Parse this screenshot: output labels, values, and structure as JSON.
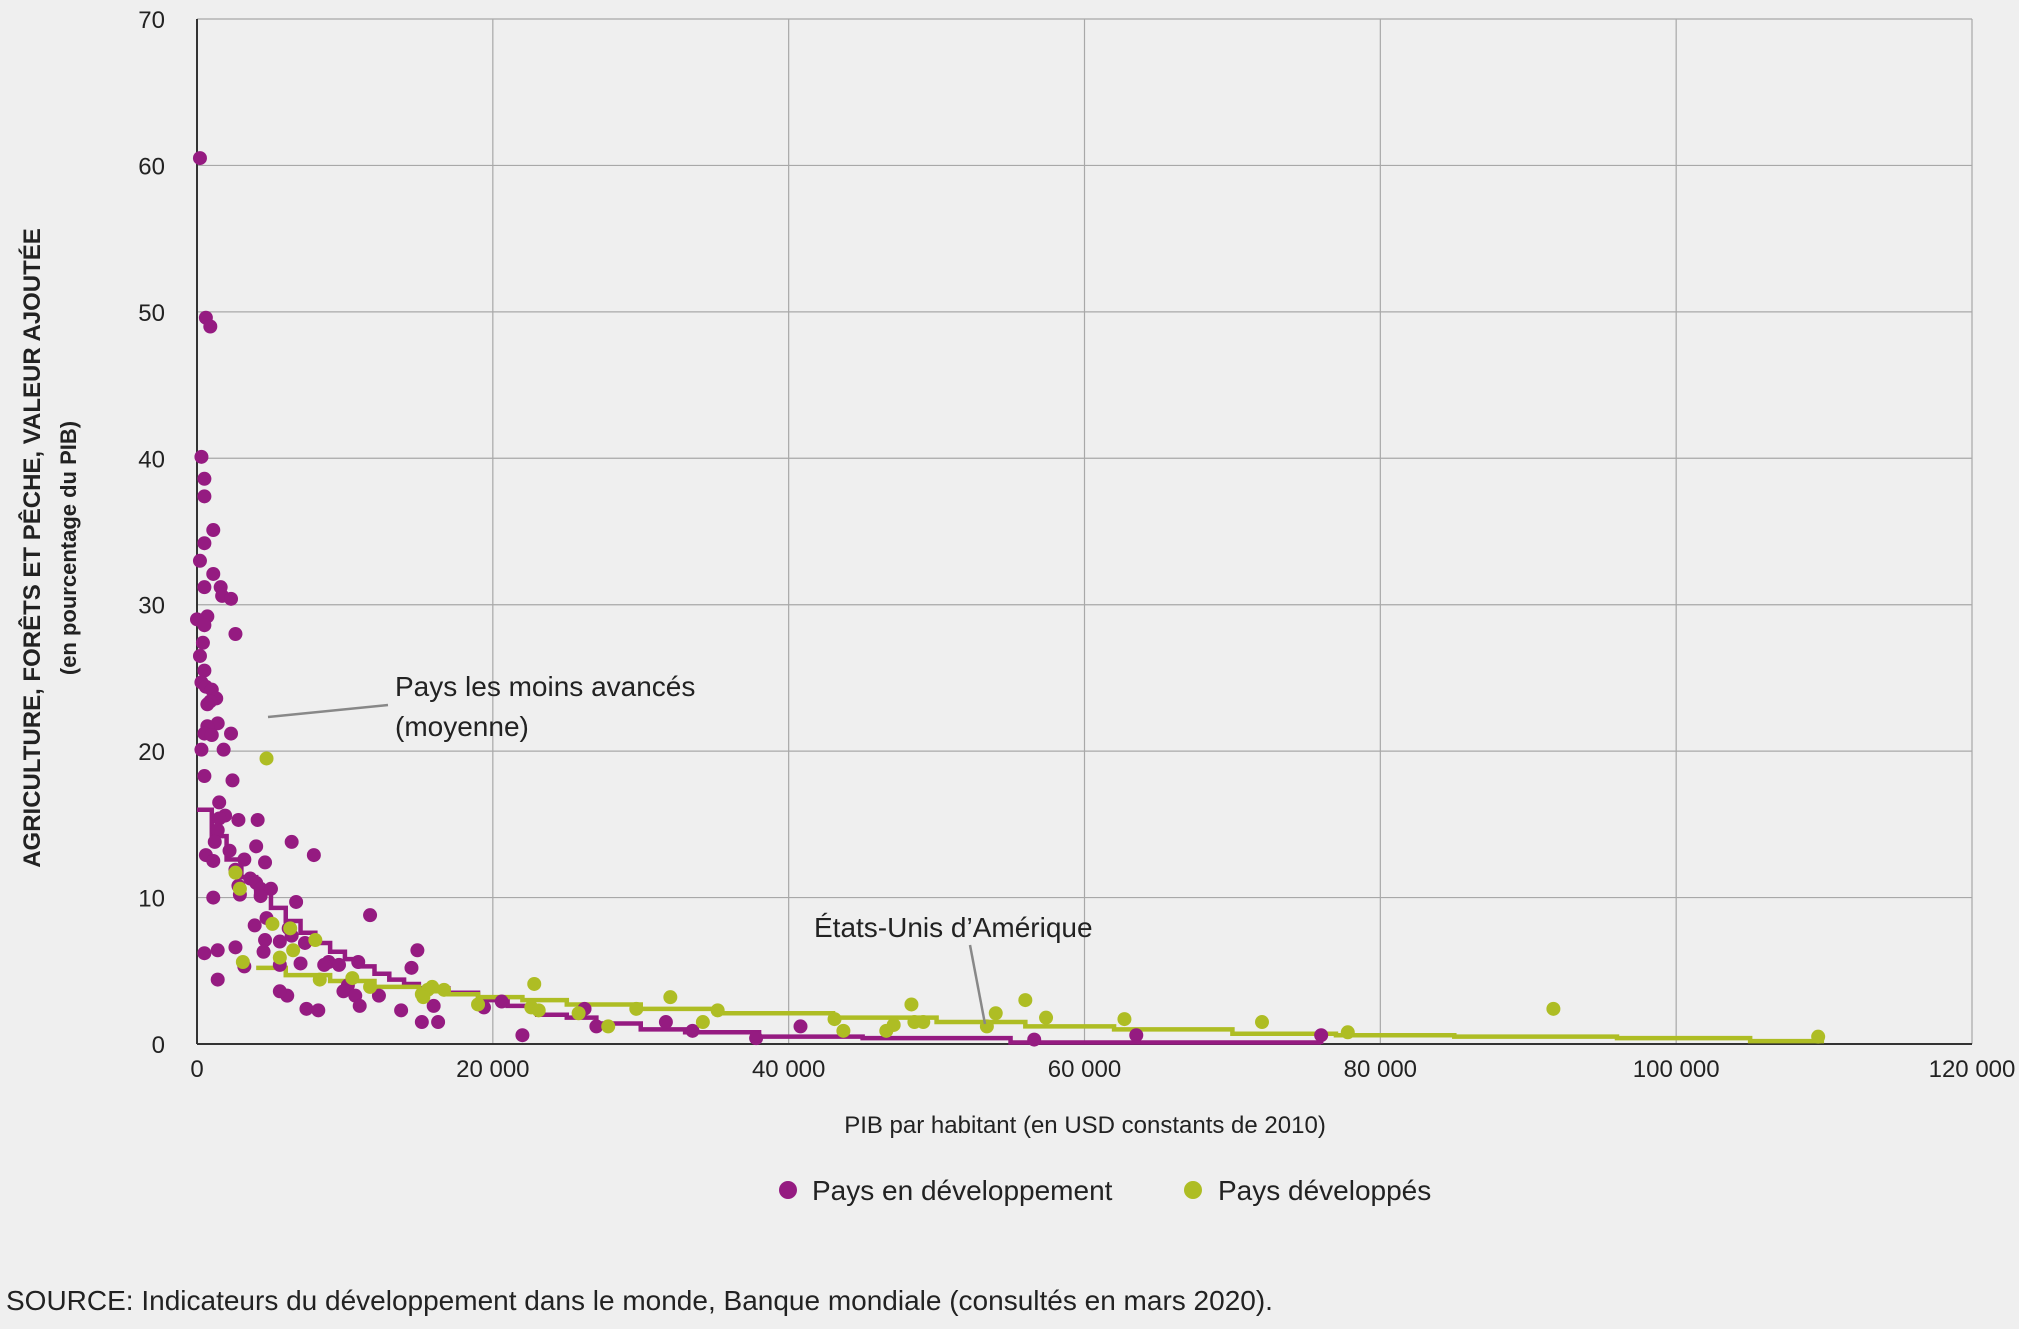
{
  "chart_data": {
    "type": "scatter",
    "xlabel": "PIB par habitant (en USD constants de 2010)",
    "ylabel": "AGRICULTURE, FORÊTS ET PÊCHE, VALEUR AJOUTÉE",
    "ylabel_sub": "(en pourcentage du PIB)",
    "xlim": [
      0,
      120000
    ],
    "ylim": [
      0,
      70
    ],
    "xticks": [
      0,
      20000,
      40000,
      60000,
      80000,
      100000,
      120000
    ],
    "xtick_labels": [
      "0",
      "20 000",
      "40 000",
      "60 000",
      "80 000",
      "100 000",
      "120 000"
    ],
    "yticks": [
      0,
      10,
      20,
      30,
      40,
      50,
      60,
      70
    ],
    "ytick_labels": [
      "0",
      "10",
      "20",
      "30",
      "40",
      "50",
      "60",
      "70"
    ],
    "grid": true,
    "legend_position": "bottom",
    "colors": {
      "developing": "#951b81",
      "developed": "#aebd24"
    },
    "series": [
      {
        "name": "Pays en développement",
        "color": "#951b81",
        "points": [
          [
            200,
            60.5
          ],
          [
            600,
            49.6
          ],
          [
            900,
            49.0
          ],
          [
            300,
            40.1
          ],
          [
            500,
            38.6
          ],
          [
            500,
            37.4
          ],
          [
            1100,
            35.1
          ],
          [
            500,
            34.2
          ],
          [
            200,
            33.0
          ],
          [
            1100,
            32.1
          ],
          [
            1600,
            31.2
          ],
          [
            500,
            31.2
          ],
          [
            1700,
            30.6
          ],
          [
            2300,
            30.4
          ],
          [
            700,
            29.2
          ],
          [
            0,
            29.0
          ],
          [
            500,
            28.6
          ],
          [
            2600,
            28.0
          ],
          [
            400,
            27.4
          ],
          [
            200,
            26.5
          ],
          [
            500,
            25.5
          ],
          [
            300,
            24.7
          ],
          [
            600,
            24.4
          ],
          [
            1000,
            24.2
          ],
          [
            1300,
            23.6
          ],
          [
            900,
            23.4
          ],
          [
            700,
            23.2
          ],
          [
            1400,
            21.9
          ],
          [
            700,
            21.7
          ],
          [
            500,
            21.2
          ],
          [
            1000,
            21.1
          ],
          [
            2300,
            21.2
          ],
          [
            300,
            20.1
          ],
          [
            1800,
            20.1
          ],
          [
            500,
            18.3
          ],
          [
            2400,
            18.0
          ],
          [
            1500,
            16.5
          ],
          [
            1900,
            15.6
          ],
          [
            1500,
            15.4
          ],
          [
            2800,
            15.3
          ],
          [
            4100,
            15.3
          ],
          [
            1400,
            14.6
          ],
          [
            1200,
            13.8
          ],
          [
            600,
            12.9
          ],
          [
            1100,
            12.5
          ],
          [
            2200,
            13.2
          ],
          [
            3200,
            12.6
          ],
          [
            4000,
            13.5
          ],
          [
            6400,
            13.8
          ],
          [
            7900,
            12.9
          ],
          [
            4600,
            12.4
          ],
          [
            2600,
            11.9
          ],
          [
            3600,
            11.3
          ],
          [
            4000,
            11.0
          ],
          [
            2800,
            10.8
          ],
          [
            4300,
            10.6
          ],
          [
            5000,
            10.6
          ],
          [
            1100,
            10.0
          ],
          [
            2900,
            10.2
          ],
          [
            4300,
            10.1
          ],
          [
            6700,
            9.7
          ],
          [
            4700,
            8.6
          ],
          [
            11700,
            8.8
          ],
          [
            3900,
            8.1
          ],
          [
            6200,
            7.9
          ],
          [
            4600,
            7.1
          ],
          [
            5600,
            7.0
          ],
          [
            2600,
            6.6
          ],
          [
            6400,
            7.4
          ],
          [
            7300,
            6.9
          ],
          [
            14900,
            6.4
          ],
          [
            1400,
            6.4
          ],
          [
            500,
            6.2
          ],
          [
            4500,
            6.3
          ],
          [
            5600,
            5.4
          ],
          [
            8900,
            5.6
          ],
          [
            9600,
            5.4
          ],
          [
            10900,
            5.6
          ],
          [
            3200,
            5.3
          ],
          [
            14500,
            5.2
          ],
          [
            1400,
            4.4
          ],
          [
            10200,
            4.0
          ],
          [
            7000,
            5.5
          ],
          [
            8600,
            5.4
          ],
          [
            9900,
            3.6
          ],
          [
            6100,
            3.3
          ],
          [
            10700,
            3.3
          ],
          [
            12300,
            3.3
          ],
          [
            5600,
            3.6
          ],
          [
            7400,
            2.4
          ],
          [
            8200,
            2.3
          ],
          [
            13800,
            2.3
          ],
          [
            11000,
            2.6
          ],
          [
            16000,
            2.6
          ],
          [
            15200,
            1.5
          ],
          [
            16300,
            1.5
          ],
          [
            19400,
            2.5
          ],
          [
            20600,
            2.9
          ],
          [
            26200,
            2.4
          ],
          [
            27000,
            1.2
          ],
          [
            31700,
            1.5
          ],
          [
            22000,
            0.6
          ],
          [
            33500,
            0.9
          ],
          [
            37800,
            0.4
          ],
          [
            40800,
            1.2
          ],
          [
            56600,
            0.3
          ],
          [
            63500,
            0.6
          ],
          [
            76000,
            0.6
          ]
        ]
      },
      {
        "name": "Pays développés",
        "color": "#aebd24",
        "points": [
          [
            4700,
            19.5
          ],
          [
            2600,
            11.7
          ],
          [
            2900,
            10.6
          ],
          [
            5100,
            8.2
          ],
          [
            6300,
            7.9
          ],
          [
            8000,
            7.1
          ],
          [
            6500,
            6.4
          ],
          [
            3100,
            5.6
          ],
          [
            5600,
            5.9
          ],
          [
            8300,
            4.4
          ],
          [
            10500,
            4.5
          ],
          [
            11700,
            3.9
          ],
          [
            15200,
            3.4
          ],
          [
            15600,
            3.7
          ],
          [
            15900,
            3.9
          ],
          [
            15300,
            3.2
          ],
          [
            16700,
            3.7
          ],
          [
            19000,
            2.7
          ],
          [
            22800,
            4.1
          ],
          [
            22600,
            2.5
          ],
          [
            23100,
            2.3
          ],
          [
            25800,
            2.1
          ],
          [
            27800,
            1.2
          ],
          [
            29700,
            2.4
          ],
          [
            32000,
            3.2
          ],
          [
            34200,
            1.5
          ],
          [
            35200,
            2.3
          ],
          [
            43100,
            1.7
          ],
          [
            43700,
            0.9
          ],
          [
            46600,
            0.9
          ],
          [
            47100,
            1.3
          ],
          [
            48300,
            2.7
          ],
          [
            48500,
            1.5
          ],
          [
            49100,
            1.5
          ],
          [
            53400,
            1.2
          ],
          [
            54000,
            2.1
          ],
          [
            56000,
            3.0
          ],
          [
            57400,
            1.8
          ],
          [
            62700,
            1.7
          ],
          [
            72000,
            1.5
          ],
          [
            77800,
            0.8
          ],
          [
            91700,
            2.4
          ],
          [
            109600,
            0.5
          ]
        ]
      }
    ],
    "trend_lines": [
      {
        "name": "Pays en développement (tendance)",
        "color": "#951b81",
        "points": [
          [
            0,
            16
          ],
          [
            1000,
            14.2
          ],
          [
            2000,
            12.6
          ],
          [
            3000,
            11.4
          ],
          [
            4000,
            10.3
          ],
          [
            5000,
            9.3
          ],
          [
            6000,
            8.4
          ],
          [
            7000,
            7.6
          ],
          [
            8000,
            6.9
          ],
          [
            9000,
            6.3
          ],
          [
            10000,
            5.8
          ],
          [
            11000,
            5.3
          ],
          [
            12000,
            4.8
          ],
          [
            13000,
            4.4
          ],
          [
            14000,
            4.1
          ],
          [
            15000,
            3.8
          ],
          [
            17000,
            3.5
          ],
          [
            19000,
            3.0
          ],
          [
            21000,
            2.6
          ],
          [
            23000,
            2.0
          ],
          [
            25000,
            1.8
          ],
          [
            27000,
            1.4
          ],
          [
            30000,
            1.0
          ],
          [
            33000,
            0.8
          ],
          [
            38000,
            0.5
          ],
          [
            45000,
            0.4
          ],
          [
            55000,
            0.1
          ],
          [
            76000,
            0.0
          ]
        ]
      },
      {
        "name": "Pays développés (tendance)",
        "color": "#aebd24",
        "points": [
          [
            4000,
            5.2
          ],
          [
            6000,
            4.7
          ],
          [
            9000,
            4.3
          ],
          [
            12000,
            3.9
          ],
          [
            15000,
            3.6
          ],
          [
            17000,
            3.4
          ],
          [
            19000,
            3.2
          ],
          [
            22000,
            3.0
          ],
          [
            25000,
            2.7
          ],
          [
            30000,
            2.4
          ],
          [
            35000,
            2.1
          ],
          [
            43000,
            1.8
          ],
          [
            50000,
            1.5
          ],
          [
            56000,
            1.2
          ],
          [
            62000,
            1.0
          ],
          [
            70000,
            0.7
          ],
          [
            77000,
            0.6
          ],
          [
            85000,
            0.5
          ],
          [
            96000,
            0.4
          ],
          [
            105000,
            0.2
          ],
          [
            110000,
            0.2
          ]
        ]
      }
    ],
    "annotations": [
      {
        "label": "Pays les moins avancés",
        "label_line2": "(moyenne)",
        "x": 4800,
        "y": 22.2
      },
      {
        "label": "États-Unis d’Amérique",
        "x": 53400,
        "y": 1.3
      }
    ]
  },
  "legend": {
    "items": [
      {
        "label": "Pays en développement",
        "color": "#951b81"
      },
      {
        "label": "Pays développés",
        "color": "#aebd24"
      }
    ]
  },
  "source": "SOURCE: Indicateurs du développement dans le monde, Banque mondiale (consultés en mars 2020)."
}
